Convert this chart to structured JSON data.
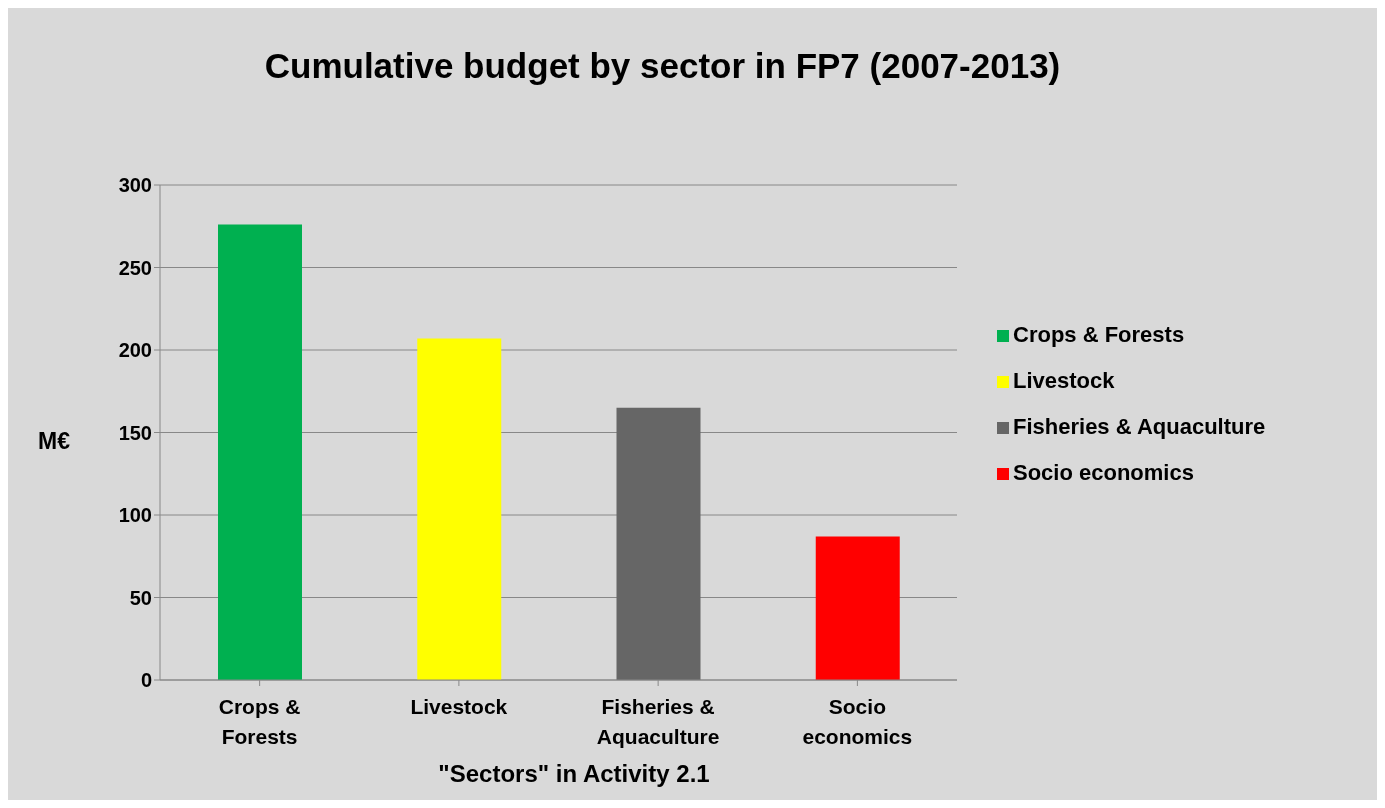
{
  "chart_data": {
    "type": "bar",
    "title": "Cumulative budget by sector in FP7 (2007-2013)",
    "xlabel": "\"Sectors\" in Activity 2.1",
    "ylabel": "M€",
    "categories": [
      "Crops & Forests",
      "Livestock",
      "Fisheries & Aquaculture",
      "Socio economics"
    ],
    "series": [
      {
        "name": "Crops & Forests",
        "color": "#00b050",
        "values": [
          276,
          null,
          null,
          null
        ]
      },
      {
        "name": "Livestock",
        "color": "#ffff00",
        "values": [
          null,
          207,
          null,
          null
        ]
      },
      {
        "name": "Fisheries & Aquaculture",
        "color": "#666666",
        "values": [
          null,
          null,
          165,
          null
        ]
      },
      {
        "name": "Socio economics",
        "color": "#ff0000",
        "values": [
          null,
          null,
          null,
          87
        ]
      }
    ],
    "stacked": true,
    "ylim": [
      0,
      300
    ],
    "yticks": [
      0,
      50,
      100,
      150,
      200,
      250,
      300
    ],
    "grid": "y",
    "legend": "right"
  }
}
